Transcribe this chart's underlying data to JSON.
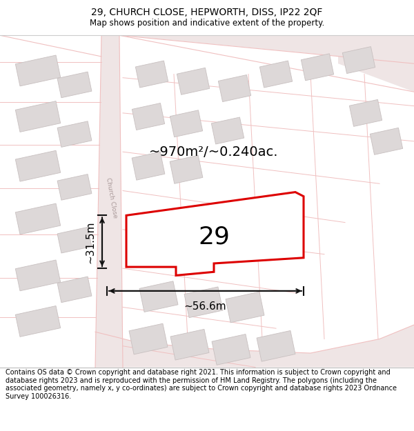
{
  "title": "29, CHURCH CLOSE, HEPWORTH, DISS, IP22 2QF",
  "subtitle": "Map shows position and indicative extent of the property.",
  "footer": "Contains OS data © Crown copyright and database right 2021. This information is subject to Crown copyright and database rights 2023 and is reproduced with the permission of HM Land Registry. The polygons (including the associated geometry, namely x, y co-ordinates) are subject to Crown copyright and database rights 2023 Ordnance Survey 100026316.",
  "area_label": "~970m²/~0.240ac.",
  "width_label": "~56.6m",
  "height_label": "~31.5m",
  "plot_number": "29",
  "map_bg": "#faf5f5",
  "road_color": "#f0c0c0",
  "road_fill": "#efe5e5",
  "building_color": "#ddd8d8",
  "building_edge": "#c8c0c0",
  "plot_outline_color": "#dd0000",
  "plot_fill_color": "#ffffff",
  "dim_line_color": "#111111",
  "street_label": "Church Close",
  "title_fontsize": 10,
  "subtitle_fontsize": 8.5,
  "footer_fontsize": 7.0,
  "area_fontsize": 14,
  "number_fontsize": 26,
  "dim_fontsize": 11
}
